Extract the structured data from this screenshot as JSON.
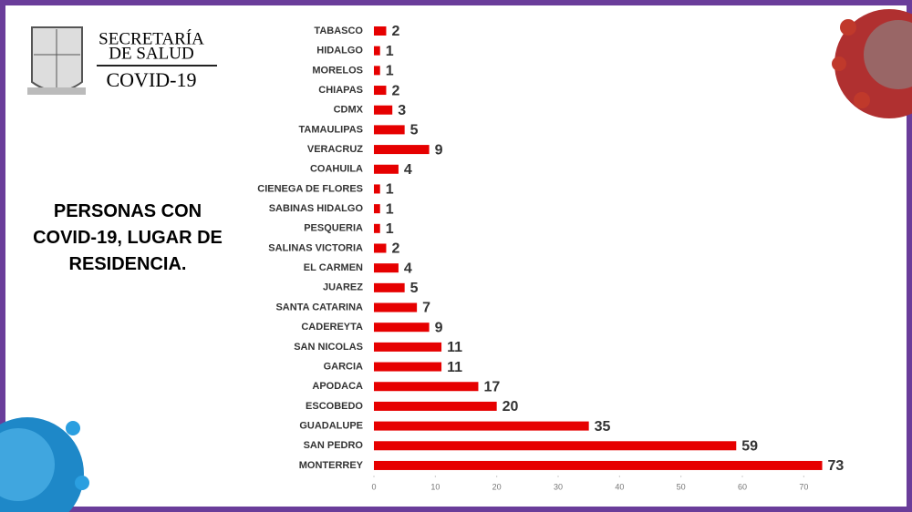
{
  "logo": {
    "line1": "SECRETARÍA",
    "line2": "DE SALUD",
    "line3": "COVID-19"
  },
  "chart_data": {
    "type": "hbar",
    "title": "PERSONAS CON COVID-19, LUGAR DE RESIDENCIA.",
    "categories": [
      "TABASCO",
      "HIDALGO",
      "MORELOS",
      "CHIAPAS",
      "CDMX",
      "TAMAULIPAS",
      "VERACRUZ",
      "COAHUILA",
      "CIENEGA DE FLORES",
      "SABINAS HIDALGO",
      "PESQUERIA",
      "SALINAS VICTORIA",
      "EL CARMEN",
      "JUAREZ",
      "SANTA CATARINA",
      "CADEREYTA",
      "SAN NICOLAS",
      "GARCIA",
      "APODACA",
      "ESCOBEDO",
      "GUADALUPE",
      "SAN PEDRO",
      "MONTERREY"
    ],
    "values": [
      2,
      1,
      1,
      2,
      3,
      5,
      9,
      4,
      1,
      1,
      1,
      2,
      4,
      5,
      7,
      9,
      11,
      11,
      17,
      20,
      35,
      59,
      73
    ],
    "color": "#e60000",
    "xlim": [
      0,
      75
    ],
    "xticks": [
      0,
      10,
      20,
      30,
      40,
      50,
      60,
      70
    ]
  }
}
